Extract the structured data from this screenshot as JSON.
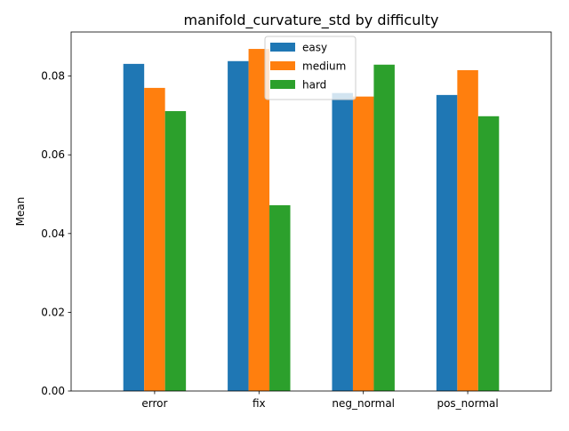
{
  "chart_data": {
    "type": "bar",
    "title": "manifold_curvature_std by difficulty",
    "xlabel": "",
    "ylabel": "Mean",
    "categories": [
      "error",
      "fix",
      "neg_normal",
      "pos_normal"
    ],
    "series": [
      {
        "name": "easy",
        "color": "#1f77b4",
        "values": [
          0.0831,
          0.0838,
          0.0757,
          0.0752
        ]
      },
      {
        "name": "medium",
        "color": "#ff7f0e",
        "values": [
          0.077,
          0.0869,
          0.0748,
          0.0815
        ]
      },
      {
        "name": "hard",
        "color": "#2ca02c",
        "values": [
          0.0711,
          0.0472,
          0.0829,
          0.0698
        ]
      }
    ],
    "ylim": [
      0,
      0.0912
    ],
    "yticks": [
      0.0,
      0.02,
      0.04,
      0.06,
      0.08
    ],
    "ytick_labels": [
      "0.00",
      "0.02",
      "0.04",
      "0.06",
      "0.08"
    ],
    "legend_position": "upper-center",
    "grid": false
  }
}
